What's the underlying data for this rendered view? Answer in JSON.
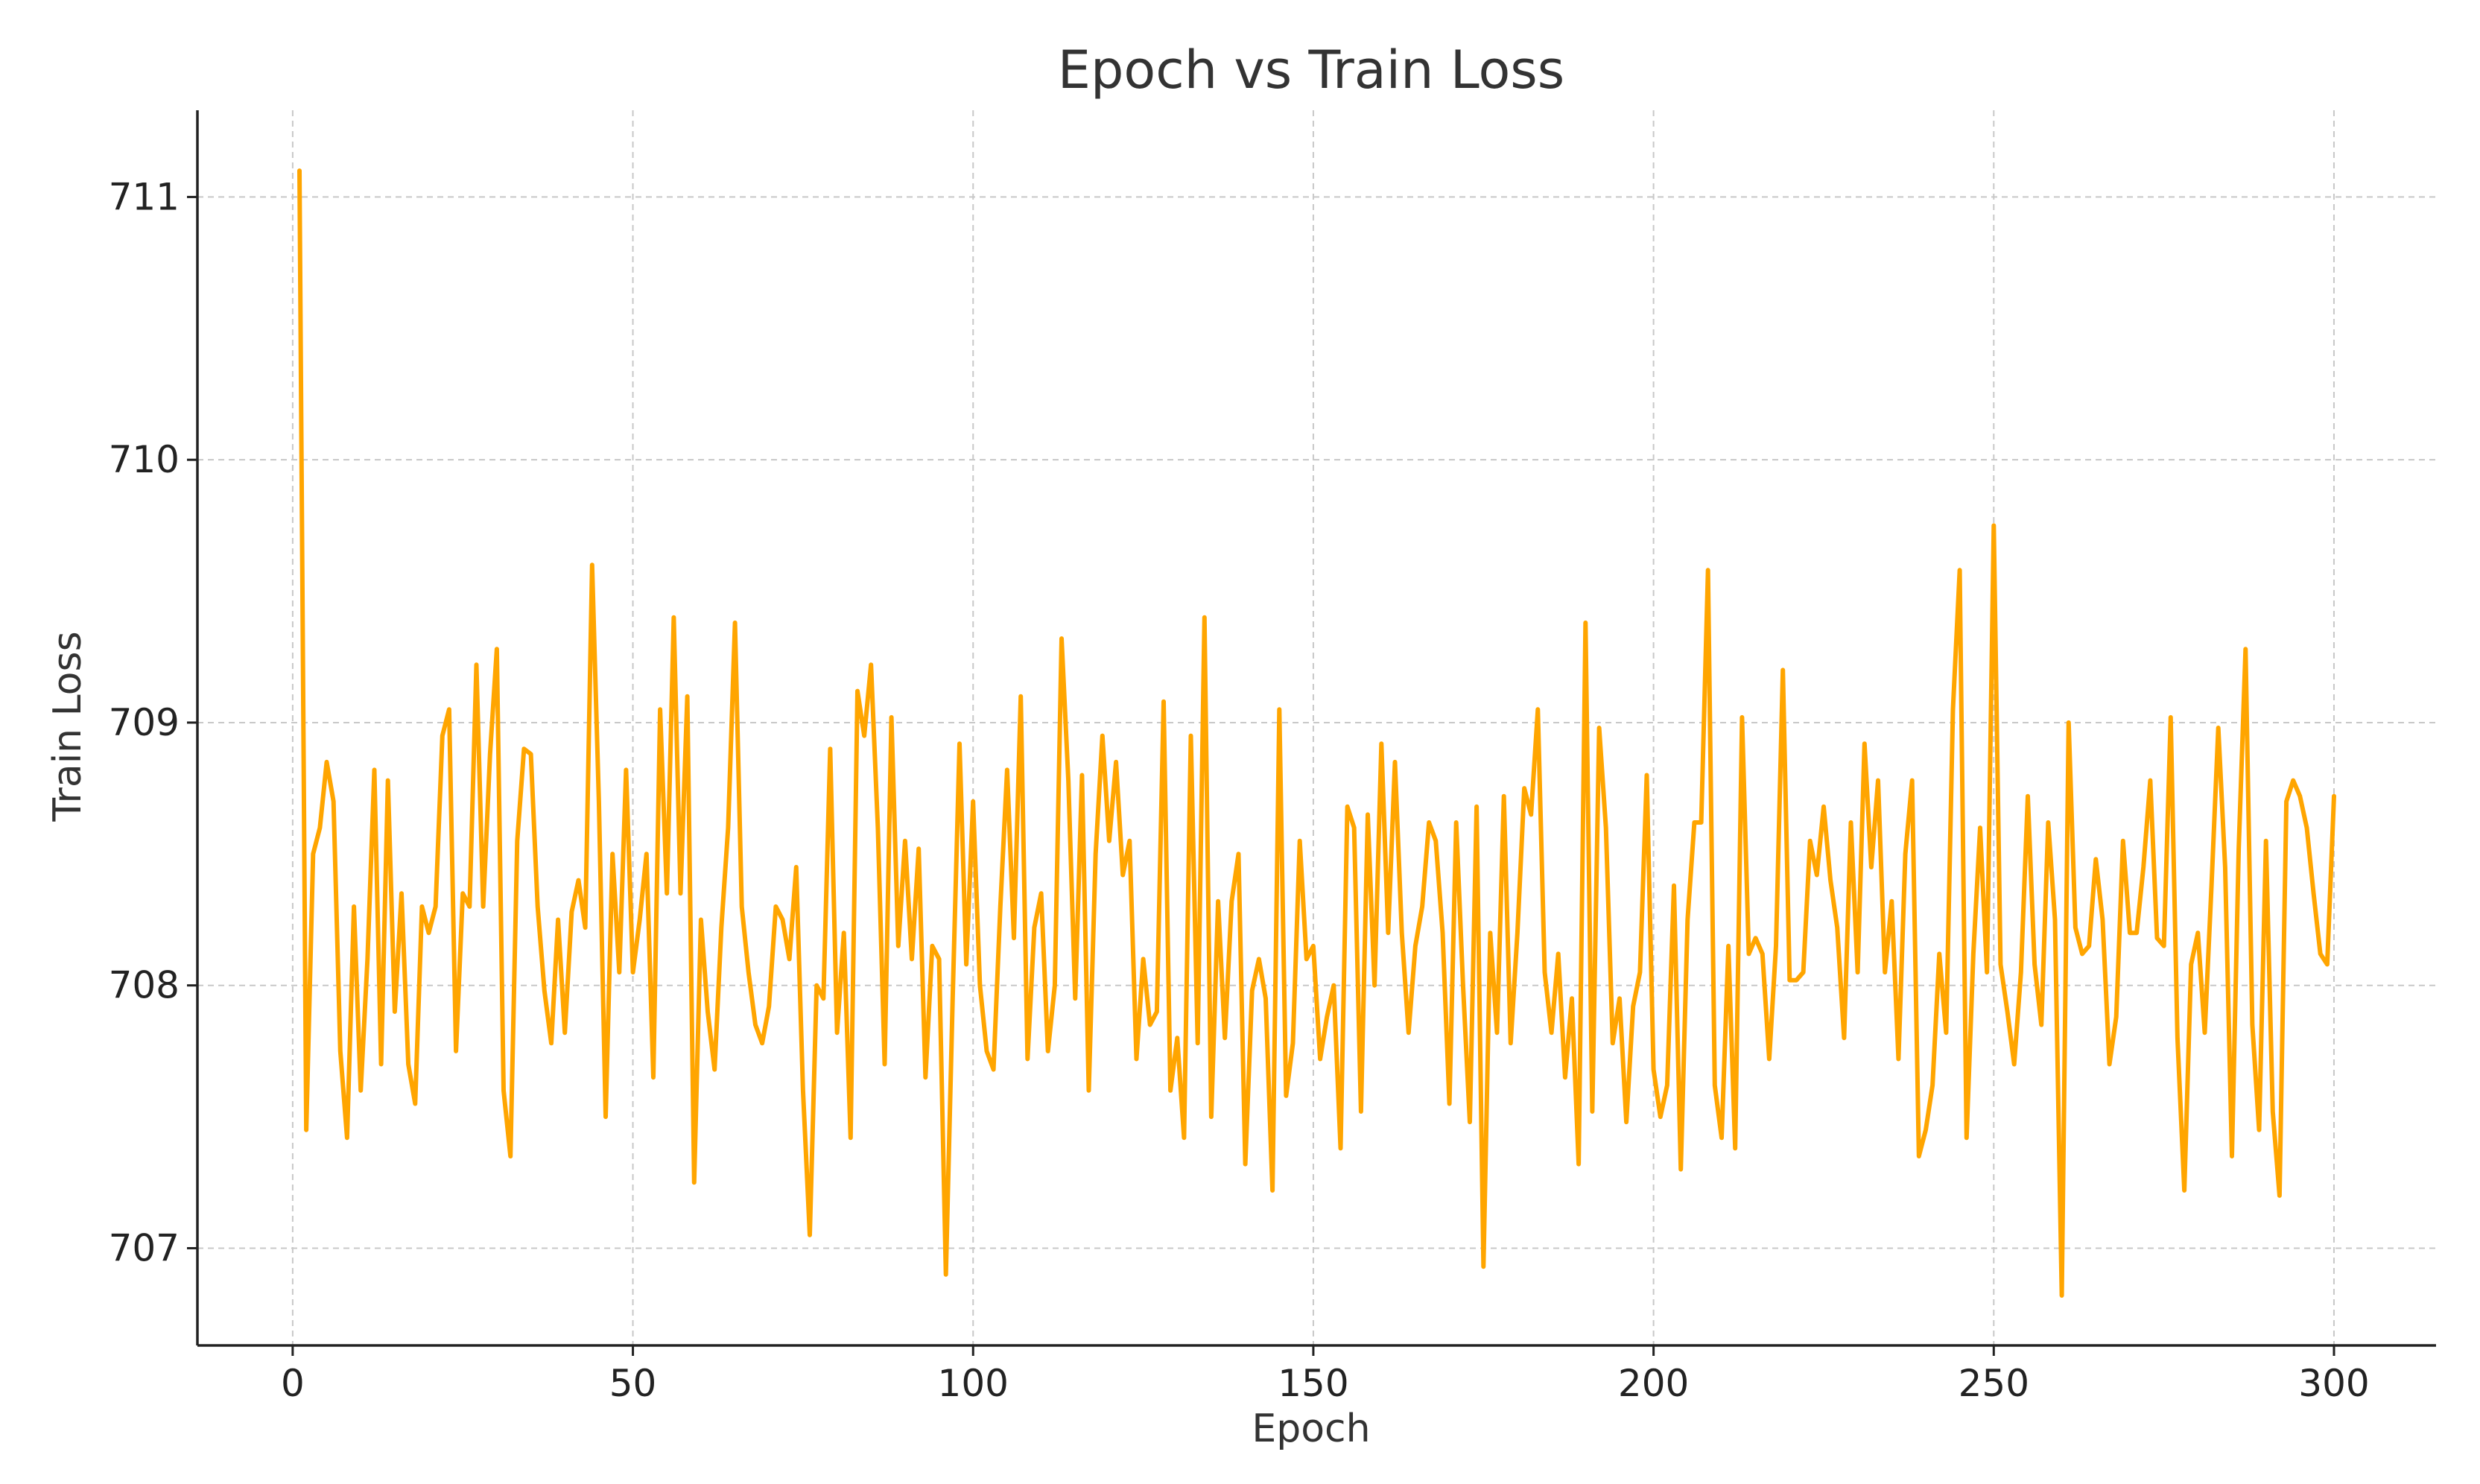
{
  "chart_data": {
    "type": "line",
    "title": "Epoch vs Train Loss",
    "xlabel": "Epoch",
    "ylabel": "Train Loss",
    "xlim": [
      -14,
      315
    ],
    "ylim": [
      706.63,
      711.33
    ],
    "xticks": [
      0,
      50,
      100,
      150,
      200,
      250,
      300
    ],
    "yticks": [
      707,
      708,
      709,
      710,
      711
    ],
    "grid": true,
    "legend": "none",
    "series": [
      {
        "color": "#FFA500",
        "x_start": 1,
        "x_step": 1,
        "values": [
          711.1,
          707.45,
          708.5,
          708.6,
          708.85,
          708.7,
          707.75,
          707.42,
          708.3,
          707.6,
          708.1,
          708.82,
          707.7,
          708.78,
          707.9,
          708.35,
          707.7,
          707.55,
          708.3,
          708.2,
          708.3,
          708.95,
          709.05,
          707.75,
          708.35,
          708.3,
          709.22,
          708.3,
          708.88,
          709.28,
          707.6,
          707.35,
          708.55,
          708.9,
          708.88,
          708.3,
          707.98,
          707.78,
          708.25,
          707.82,
          708.28,
          708.4,
          708.22,
          709.6,
          708.7,
          707.5,
          708.5,
          708.05,
          708.82,
          708.05,
          708.25,
          708.5,
          707.65,
          709.05,
          708.35,
          709.4,
          708.35,
          709.1,
          707.25,
          708.25,
          707.9,
          707.68,
          708.22,
          708.6,
          709.38,
          708.3,
          708.05,
          707.85,
          707.78,
          707.92,
          708.3,
          708.25,
          708.1,
          708.45,
          707.6,
          707.05,
          708.0,
          707.95,
          708.9,
          707.82,
          708.2,
          707.42,
          709.12,
          708.95,
          709.22,
          708.6,
          707.7,
          709.02,
          708.15,
          708.55,
          708.1,
          708.52,
          707.65,
          708.15,
          708.1,
          706.9,
          707.95,
          708.92,
          708.08,
          708.7,
          708.0,
          707.75,
          707.68,
          708.3,
          708.82,
          708.18,
          709.1,
          707.72,
          708.22,
          708.35,
          707.75,
          708.0,
          709.32,
          708.78,
          707.95,
          708.8,
          707.6,
          708.5,
          708.95,
          708.55,
          708.85,
          708.42,
          708.55,
          707.72,
          708.1,
          707.85,
          707.9,
          709.08,
          707.6,
          707.8,
          707.42,
          708.95,
          707.78,
          709.4,
          707.5,
          708.32,
          707.8,
          708.32,
          708.5,
          707.32,
          707.98,
          708.1,
          707.95,
          707.22,
          709.05,
          707.58,
          707.78,
          708.55,
          708.1,
          708.15,
          707.72,
          707.88,
          708.0,
          707.38,
          708.68,
          708.6,
          707.52,
          708.65,
          708.0,
          708.92,
          708.2,
          708.85,
          708.2,
          707.82,
          708.15,
          708.3,
          708.62,
          708.55,
          708.2,
          707.55,
          708.62,
          708.0,
          707.48,
          708.68,
          706.93,
          708.2,
          707.82,
          708.72,
          707.78,
          708.2,
          708.75,
          708.65,
          709.05,
          708.05,
          707.82,
          708.12,
          707.65,
          707.95,
          707.32,
          709.38,
          707.52,
          708.98,
          708.6,
          707.78,
          707.95,
          707.48,
          707.92,
          708.05,
          708.8,
          707.68,
          707.5,
          707.62,
          708.38,
          707.3,
          708.25,
          708.62,
          708.62,
          709.58,
          707.62,
          707.42,
          708.15,
          707.38,
          709.02,
          708.12,
          708.18,
          708.12,
          707.72,
          708.15,
          709.2,
          708.02,
          708.02,
          708.05,
          708.55,
          708.42,
          708.68,
          708.4,
          708.22,
          707.8,
          708.62,
          708.05,
          708.92,
          708.45,
          708.78,
          708.05,
          708.32,
          707.72,
          708.5,
          708.78,
          707.35,
          707.45,
          707.62,
          708.12,
          707.82,
          709.05,
          709.58,
          707.42,
          708.12,
          708.6,
          708.05,
          709.75,
          708.08,
          707.9,
          707.7,
          708.05,
          708.72,
          708.08,
          707.85,
          708.62,
          708.25,
          706.82,
          709.0,
          708.22,
          708.12,
          708.15,
          708.48,
          708.25,
          707.7,
          707.88,
          708.55,
          708.2,
          708.2,
          708.45,
          708.78,
          708.18,
          708.15,
          709.02,
          707.8,
          707.22,
          708.08,
          708.2,
          707.82,
          708.38,
          708.98,
          708.45,
          707.35,
          708.52,
          709.28,
          707.85,
          707.45,
          708.55,
          707.52,
          707.2,
          708.7,
          708.78,
          708.72,
          708.6,
          708.35,
          708.12,
          708.08,
          708.72
        ]
      }
    ]
  }
}
